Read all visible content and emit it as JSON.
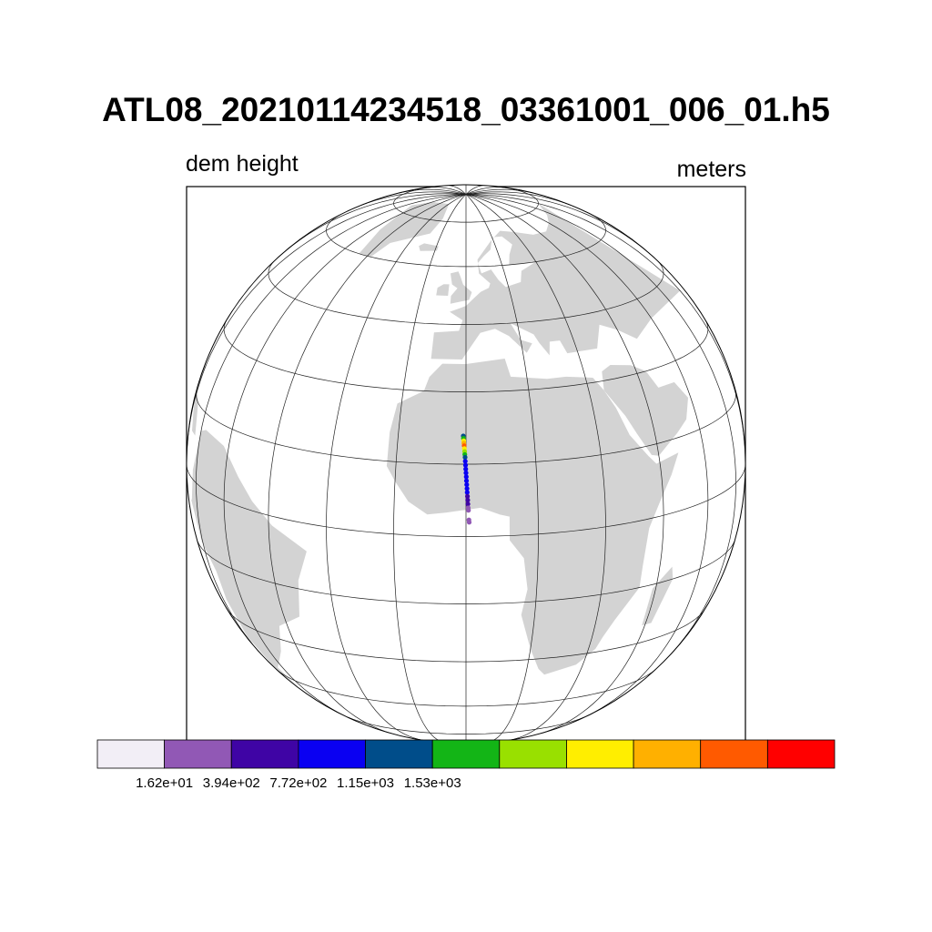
{
  "title": "ATL08_20210114234518_03361001_006_01.h5",
  "variable_label": "dem height",
  "units_label": "meters",
  "map": {
    "projection": "orthographic",
    "center_lon": 0,
    "center_lat": 15,
    "graticule_step_deg": 15,
    "land_color": "#d3d3d3",
    "ocean_color": "#ffffff"
  },
  "colorbar": {
    "colors": [
      "#f2eef6",
      "#9158b5",
      "#3f04a5",
      "#0a00f2",
      "#004d8a",
      "#13b516",
      "#99e000",
      "#ffee00",
      "#ffb000",
      "#ff5a00",
      "#ff0000"
    ],
    "tick_labels": [
      "1.62e+01",
      "3.94e+02",
      "7.72e+02",
      "1.15e+03",
      "1.53e+03"
    ]
  },
  "track": {
    "points": [
      {
        "lon": -0.6,
        "lat": 20.8,
        "level": 4
      },
      {
        "lon": -0.55,
        "lat": 20.3,
        "level": 5
      },
      {
        "lon": -0.5,
        "lat": 19.8,
        "level": 7
      },
      {
        "lon": -0.45,
        "lat": 19.3,
        "level": 8
      },
      {
        "lon": -0.4,
        "lat": 18.8,
        "level": 9
      },
      {
        "lon": -0.35,
        "lat": 18.2,
        "level": 7
      },
      {
        "lon": -0.3,
        "lat": 17.6,
        "level": 6
      },
      {
        "lon": -0.25,
        "lat": 17.0,
        "level": 5
      },
      {
        "lon": -0.2,
        "lat": 16.4,
        "level": 4
      },
      {
        "lon": -0.15,
        "lat": 15.6,
        "level": 3
      },
      {
        "lon": -0.1,
        "lat": 14.8,
        "level": 3
      },
      {
        "lon": -0.05,
        "lat": 14.0,
        "level": 3
      },
      {
        "lon": 0.0,
        "lat": 13.2,
        "level": 3
      },
      {
        "lon": 0.05,
        "lat": 12.4,
        "level": 3
      },
      {
        "lon": 0.1,
        "lat": 11.6,
        "level": 3
      },
      {
        "lon": 0.15,
        "lat": 10.8,
        "level": 3
      },
      {
        "lon": 0.2,
        "lat": 10.0,
        "level": 3
      },
      {
        "lon": 0.25,
        "lat": 9.2,
        "level": 3
      },
      {
        "lon": 0.3,
        "lat": 8.4,
        "level": 2
      },
      {
        "lon": 0.35,
        "lat": 7.6,
        "level": 2
      },
      {
        "lon": 0.4,
        "lat": 6.8,
        "level": 2
      },
      {
        "lon": 0.45,
        "lat": 6.0,
        "level": 1
      },
      {
        "lon": 0.5,
        "lat": 5.5,
        "level": 1
      },
      {
        "lon": 0.6,
        "lat": 3.5,
        "level": 1
      },
      {
        "lon": 0.65,
        "lat": 3.0,
        "level": 1
      }
    ]
  }
}
